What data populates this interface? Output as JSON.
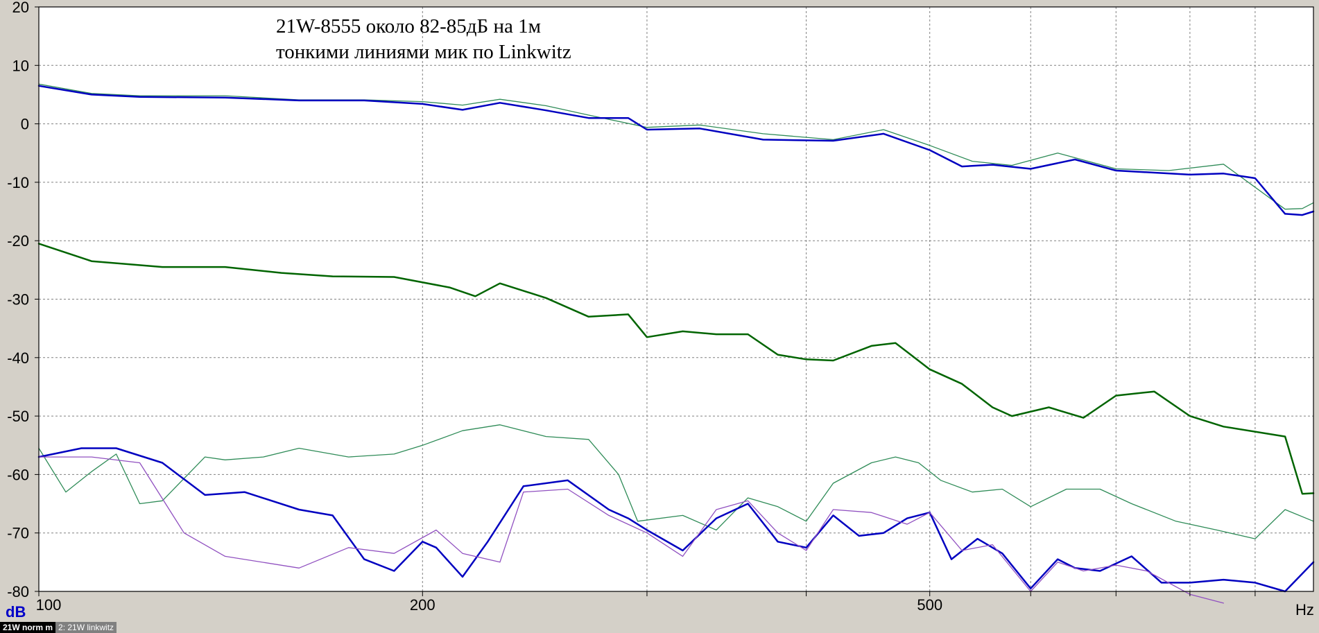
{
  "legend": {
    "item1": "21W norm m",
    "item2": "2: 21W linkwitz"
  },
  "colors": {
    "blue": "#0000c0",
    "green": "#006400",
    "thin_blue_green": "#2e8b57",
    "purple": "#9050c0",
    "plot_bg": "#ffffff",
    "frame_bg": "#d4d0c8",
    "grid": "#808080"
  },
  "chart_data": {
    "type": "line",
    "title": "",
    "annotations": [
      "21W-8555 около 82-85дБ на 1м",
      "тонкими линиями мик по Linkwitz"
    ],
    "xlabel": "Hz",
    "ylabel": "dB",
    "xscale": "log",
    "xlim": [
      100,
      1000
    ],
    "ylim": [
      -80,
      20
    ],
    "x_ticks": [
      100,
      200,
      300,
      400,
      500,
      600,
      700,
      800,
      900
    ],
    "x_tick_labels": [
      {
        "x": 100,
        "label": "100"
      },
      {
        "x": 200,
        "label": "200"
      },
      {
        "x": 500,
        "label": "500"
      }
    ],
    "y_ticks": [
      20,
      10,
      0,
      -10,
      -20,
      -30,
      -40,
      -50,
      -60,
      -70,
      -80
    ],
    "y_tick_labels": [
      "20",
      "10",
      "0",
      "-10",
      "-20",
      "-30",
      "-40",
      "-50",
      "-60",
      "-70",
      "-80"
    ],
    "grid": true,
    "series": [
      {
        "id": "blue-top-thin",
        "color": "#2e8b57",
        "width": 1.3,
        "x": [
          100,
          110,
          120,
          140,
          160,
          180,
          200,
          215,
          230,
          250,
          270,
          300,
          330,
          370,
          420,
          460,
          500,
          540,
          580,
          630,
          700,
          770,
          850,
          950,
          980,
          1000
        ],
        "y": [
          6.8,
          5.2,
          4.8,
          4.8,
          4.1,
          4.1,
          3.8,
          3.2,
          4.2,
          3.1,
          1.5,
          -0.6,
          -0.2,
          -1.7,
          -2.7,
          -1.0,
          -3.7,
          -6.4,
          -7.1,
          -5.0,
          -7.7,
          -8.0,
          -6.9,
          -14.6,
          -14.5,
          -13.5
        ]
      },
      {
        "id": "blue-top",
        "color": "#0000c0",
        "width": 2.5,
        "x": [
          100,
          110,
          120,
          140,
          160,
          180,
          200,
          215,
          230,
          250,
          270,
          290,
          300,
          330,
          370,
          420,
          460,
          500,
          530,
          560,
          600,
          650,
          700,
          800,
          850,
          900,
          950,
          980,
          1000
        ],
        "y": [
          6.5,
          5.0,
          4.6,
          4.5,
          4.0,
          4.0,
          3.4,
          2.4,
          3.6,
          2.3,
          1.0,
          1.0,
          -1.0,
          -0.8,
          -2.7,
          -2.9,
          -1.7,
          -4.5,
          -7.3,
          -7.0,
          -7.7,
          -6.1,
          -8.0,
          -8.7,
          -8.5,
          -9.3,
          -15.4,
          -15.6,
          -15.0
        ]
      },
      {
        "id": "green-mid",
        "color": "#006400",
        "width": 2.5,
        "x": [
          100,
          110,
          125,
          140,
          155,
          170,
          190,
          210,
          220,
          230,
          250,
          270,
          290,
          300,
          320,
          340,
          360,
          380,
          400,
          420,
          450,
          470,
          500,
          530,
          560,
          580,
          620,
          660,
          700,
          750,
          800,
          850,
          950,
          980,
          1000
        ],
        "y": [
          -20.5,
          -23.5,
          -24.5,
          -24.5,
          -25.5,
          -26.1,
          -26.2,
          -28.0,
          -29.5,
          -27.3,
          -29.8,
          -33.0,
          -32.6,
          -36.5,
          -35.5,
          -36.0,
          -36.0,
          -39.5,
          -40.3,
          -40.5,
          -38.0,
          -37.5,
          -42.0,
          -44.5,
          -48.5,
          -50.0,
          -48.5,
          -50.3,
          -46.5,
          -45.8,
          -50.0,
          -51.8,
          -53.5,
          -63.3,
          -63.2
        ]
      },
      {
        "id": "green-low-thin",
        "color": "#2e8b57",
        "width": 1.3,
        "x": [
          100,
          105,
          110,
          115,
          120,
          125,
          135,
          140,
          150,
          160,
          175,
          190,
          200,
          215,
          230,
          250,
          270,
          285,
          295,
          320,
          340,
          360,
          380,
          400,
          420,
          450,
          470,
          490,
          510,
          540,
          570,
          600,
          640,
          680,
          720,
          780,
          840,
          900,
          950,
          1000
        ],
        "y": [
          -55.5,
          -63.0,
          -59.5,
          -56.5,
          -65.0,
          -64.5,
          -57.0,
          -57.5,
          -57.0,
          -55.5,
          -57.0,
          -56.5,
          -55.0,
          -52.5,
          -51.5,
          -53.5,
          -54.0,
          -60.0,
          -68.0,
          -67.0,
          -69.5,
          -64.0,
          -65.5,
          -68.0,
          -61.5,
          -58.0,
          -57.0,
          -58.0,
          -61.0,
          -63.0,
          -62.5,
          -65.5,
          -62.5,
          -62.5,
          -65.0,
          -68.0,
          -69.5,
          -71.0,
          -66.0,
          -68.0
        ]
      },
      {
        "id": "blue-low",
        "color": "#0000c0",
        "width": 2.5,
        "x": [
          100,
          108,
          115,
          125,
          135,
          145,
          160,
          170,
          180,
          190,
          200,
          205,
          215,
          225,
          240,
          260,
          280,
          290,
          300,
          320,
          340,
          360,
          380,
          400,
          420,
          440,
          460,
          480,
          500,
          520,
          545,
          570,
          600,
          630,
          650,
          680,
          720,
          760,
          800,
          850,
          900,
          950,
          1000
        ],
        "y": [
          -57.0,
          -55.5,
          -55.5,
          -58.0,
          -63.5,
          -63.0,
          -66.0,
          -67.0,
          -74.5,
          -76.5,
          -71.5,
          -72.5,
          -77.5,
          -71.5,
          -62.0,
          -61.0,
          -66.0,
          -67.5,
          -69.5,
          -73.0,
          -67.5,
          -65.0,
          -71.5,
          -72.5,
          -67.0,
          -70.5,
          -70.0,
          -67.5,
          -66.5,
          -74.5,
          -71.0,
          -73.5,
          -79.5,
          -74.5,
          -76.0,
          -76.5,
          -74.0,
          -78.5,
          -78.5,
          -78.0,
          -78.5,
          -80.0,
          -75.0
        ]
      },
      {
        "id": "purple-low",
        "color": "#9050c0",
        "width": 1.3,
        "x": [
          100,
          110,
          120,
          130,
          140,
          160,
          175,
          190,
          205,
          215,
          230,
          240,
          260,
          280,
          300,
          320,
          340,
          360,
          380,
          400,
          420,
          450,
          480,
          500,
          530,
          560,
          600,
          630,
          660,
          700,
          740,
          800,
          850
        ],
        "y": [
          -57.0,
          -57.0,
          -58.0,
          -70.0,
          -74.0,
          -76.0,
          -72.5,
          -73.5,
          -69.5,
          -73.5,
          -75.0,
          -63.0,
          -62.5,
          -67.0,
          -70.0,
          -74.0,
          -66.0,
          -64.5,
          -70.0,
          -73.0,
          -66.0,
          -66.5,
          -68.5,
          -66.5,
          -73.0,
          -72.0,
          -80.0,
          -75.0,
          -76.5,
          -75.5,
          -76.5,
          -80.5,
          -82.0
        ]
      }
    ]
  }
}
